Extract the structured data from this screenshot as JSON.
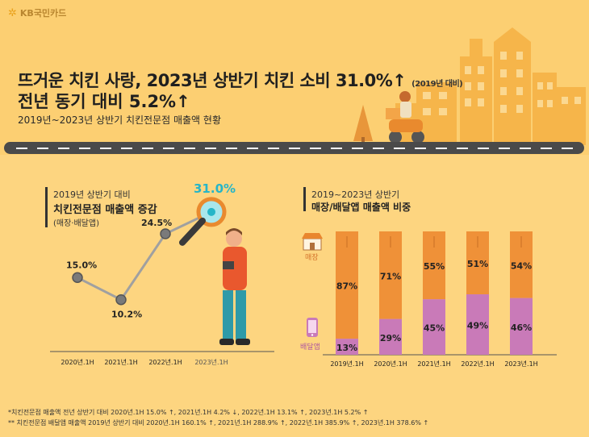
{
  "brand": {
    "name": "KB국민카드"
  },
  "header": {
    "title_line1": "뜨거운 치킨 사랑, 2023년 상반기 치킨 소비 31.0%↑",
    "title_note": "(2019년 대비)",
    "title_line2": "전년 동기 대비 5.2%↑",
    "subtitle": "2019년~2023년 상반기 치킨전문점 매출액 현황"
  },
  "left_panel": {
    "title_small": "2019년 상반기 대비",
    "title_main": "치킨전문점 매출액 증감",
    "title_sub": "(매장·배달앱)"
  },
  "right_panel": {
    "title_small": "2019~2023년 상반기",
    "title_main": "매장/배달앱 매출액 비중",
    "legend_store": "매장",
    "legend_delivery": "배달앱"
  },
  "colors": {
    "store": "#ef9138",
    "delivery": "#c97ab8",
    "highlight": "#25b5c8",
    "line": "#a0a0a0",
    "background": "#fdd580"
  },
  "chart_data": [
    {
      "type": "line",
      "categories": [
        "2020년.1H",
        "2021년.1H",
        "2022년.1H",
        "2023년.1H"
      ],
      "values": [
        15.0,
        10.2,
        24.5,
        31.0
      ],
      "labels": [
        "15.0%",
        "10.2%",
        "24.5%",
        "31.0%"
      ],
      "ylim": [
        0,
        35
      ]
    },
    {
      "type": "bar",
      "categories": [
        "2019년.1H",
        "2020년.1H",
        "2021년.1H",
        "2022년.1H",
        "2023년.1H"
      ],
      "series": [
        {
          "name": "매장",
          "values": [
            87,
            71,
            55,
            51,
            54
          ],
          "labels": [
            "87%",
            "71%",
            "55%",
            "51%",
            "54%"
          ]
        },
        {
          "name": "배달앱",
          "values": [
            13,
            29,
            45,
            49,
            46
          ],
          "labels": [
            "13%",
            "29%",
            "45%",
            "49%",
            "46%"
          ]
        }
      ],
      "ylim": [
        0,
        100
      ]
    }
  ],
  "footnotes": {
    "line1": "*치킨전문점 매출액 전년 상반기 대비 2020년.1H 15.0% ↑, 2021년.1H 4.2% ↓, 2022년.1H 13.1% ↑, 2023년.1H 5.2% ↑",
    "line2": "** 치킨전문점 배달앱 매출액 2019년 상반기 대비 2020년.1H 160.1% ↑, 2021년.1H 288.9% ↑, 2022년.1H 385.9% ↑, 2023년.1H 378.6% ↑"
  }
}
